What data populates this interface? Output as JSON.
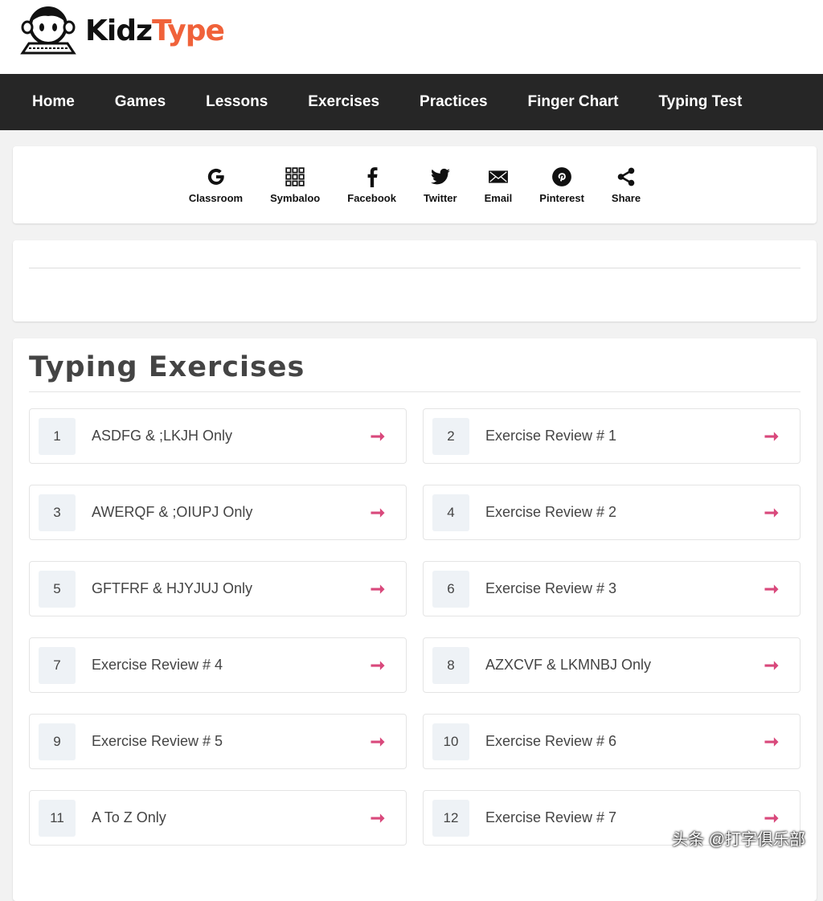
{
  "logo": {
    "part1": "Kidz",
    "part2": "Type"
  },
  "nav": [
    "Home",
    "Games",
    "Lessons",
    "Exercises",
    "Practices",
    "Finger Chart",
    "Typing Test"
  ],
  "share": [
    {
      "label": "Classroom",
      "icon": "google-icon"
    },
    {
      "label": "Symbaloo",
      "icon": "grid-icon"
    },
    {
      "label": "Facebook",
      "icon": "facebook-icon"
    },
    {
      "label": "Twitter",
      "icon": "twitter-icon"
    },
    {
      "label": "Email",
      "icon": "email-icon"
    },
    {
      "label": "Pinterest",
      "icon": "pinterest-icon"
    },
    {
      "label": "Share",
      "icon": "share-icon"
    }
  ],
  "main": {
    "title": "Typing Exercises",
    "items": [
      {
        "num": "1",
        "label": "ASDFG & ;LKJH Only"
      },
      {
        "num": "2",
        "label": "Exercise Review # 1"
      },
      {
        "num": "3",
        "label": "AWERQF & ;OIUPJ Only"
      },
      {
        "num": "4",
        "label": "Exercise Review # 2"
      },
      {
        "num": "5",
        "label": "GFTFRF & HJYJUJ Only"
      },
      {
        "num": "6",
        "label": "Exercise Review # 3"
      },
      {
        "num": "7",
        "label": "Exercise Review # 4"
      },
      {
        "num": "8",
        "label": "AZXCVF & LKMNBJ Only"
      },
      {
        "num": "9",
        "label": "Exercise Review # 5"
      },
      {
        "num": "10",
        "label": "Exercise Review # 6"
      },
      {
        "num": "11",
        "label": "A To Z Only"
      },
      {
        "num": "12",
        "label": "Exercise Review # 7"
      }
    ]
  },
  "arrow": "➞",
  "watermark": "头条 @打字俱乐部",
  "colors": {
    "nav_bg": "#262626",
    "brand_orange": "#f0623a",
    "arrow": "#d9497c"
  }
}
